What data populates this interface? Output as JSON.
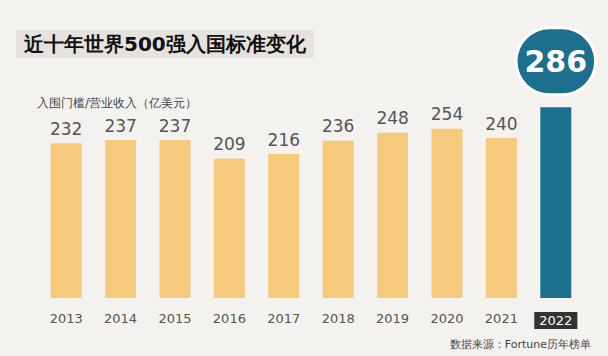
{
  "chart_data": {
    "type": "bar",
    "title": "近十年世界500强入国标准变化",
    "ylabel": "入围门槛/营业收入（亿美元）",
    "source": "数据来源：Fortune历年榜单",
    "categories": [
      "2013",
      "2014",
      "2015",
      "2016",
      "2017",
      "2018",
      "2019",
      "2020",
      "2021",
      "2022"
    ],
    "values": [
      232,
      237,
      237,
      209,
      216,
      236,
      248,
      254,
      240,
      286
    ],
    "colors": [
      "#f6c97c",
      "#f6c97c",
      "#f6c97c",
      "#f6c97c",
      "#f6c97c",
      "#f6c97c",
      "#f6c97c",
      "#f6c97c",
      "#f6c97c",
      "#1d6f8e"
    ],
    "ylim": [
      0,
      300
    ],
    "yticks": [
      0,
      300
    ],
    "grid": false,
    "data_labels": true,
    "tick_labels": "x"
  }
}
